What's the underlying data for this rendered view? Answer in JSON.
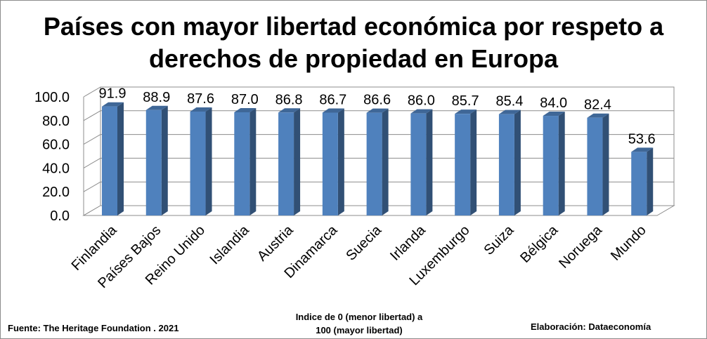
{
  "chart_data": {
    "type": "bar",
    "title": "Países con mayor libertad económica por respeto a derechos de propiedad en Europa",
    "title_lines": [
      "Países con mayor libertad económica por respeto a",
      "derechos de propiedad en Europa"
    ],
    "categories": [
      "Finlandia",
      "Países Bajos",
      "Reino Unido",
      "Islandia",
      "Austria",
      "Dinamarca",
      "Suecia",
      "Irlanda",
      "Luxemburgo",
      "Suiza",
      "Bélgica",
      "Noruega",
      "Mundo"
    ],
    "values": [
      91.9,
      88.9,
      87.6,
      87.0,
      86.8,
      86.7,
      86.6,
      86.0,
      85.7,
      85.4,
      84.0,
      82.4,
      53.6
    ],
    "value_labels": [
      "91.9",
      "88.9",
      "87.6",
      "87.0",
      "86.8",
      "86.7",
      "86.6",
      "86.0",
      "85.7",
      "85.4",
      "84.0",
      "82.4",
      "53.6"
    ],
    "y_ticks": [
      "0.0",
      "20.0",
      "40.0",
      "60.0",
      "80.0",
      "100.0"
    ],
    "ylim": [
      0,
      100
    ],
    "grid": true,
    "legend": "none",
    "bar_color": "#4f81bd"
  },
  "footer": {
    "source": "Fuente: The Heritage Foundation . 2021",
    "note_lines": [
      "Indice de 0 (menor libertad) a",
      "100  (mayor libertad)"
    ],
    "credit": "Elaboración: Dataeconomía"
  }
}
